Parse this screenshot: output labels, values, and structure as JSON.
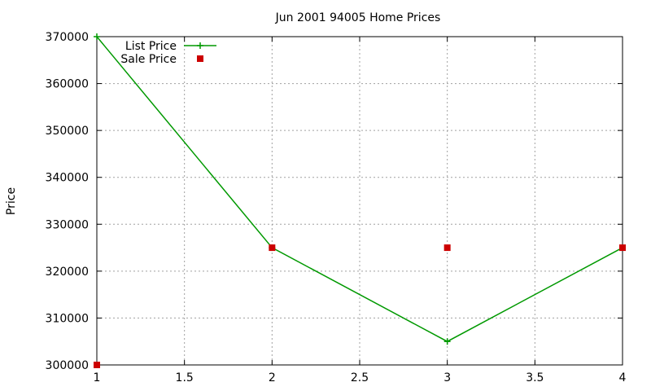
{
  "chart_data": {
    "type": "line",
    "title": "Jun 2001 94005 Home Prices",
    "xlabel": "",
    "ylabel": "Price",
    "xlim": [
      1,
      4
    ],
    "ylim": [
      300000,
      370000
    ],
    "x_ticks": [
      1,
      1.5,
      2,
      2.5,
      3,
      3.5,
      4
    ],
    "x_tick_labels": [
      "1",
      "1.5",
      "2",
      "2.5",
      "3",
      "3.5",
      "4"
    ],
    "y_ticks": [
      300000,
      310000,
      320000,
      330000,
      340000,
      350000,
      360000,
      370000
    ],
    "y_tick_labels": [
      "300000",
      "310000",
      "320000",
      "330000",
      "340000",
      "350000",
      "360000",
      "370000"
    ],
    "grid": true,
    "legend_position": "top-left",
    "series": [
      {
        "name": "List Price",
        "style": "line-points",
        "color": "#009900",
        "x": [
          1,
          2,
          3,
          4
        ],
        "y": [
          370000,
          325000,
          305000,
          325000
        ]
      },
      {
        "name": "Sale Price",
        "style": "points",
        "color": "#cc0000",
        "x": [
          1,
          2,
          3,
          4
        ],
        "y": [
          300000,
          325000,
          325000,
          325000
        ]
      }
    ]
  }
}
